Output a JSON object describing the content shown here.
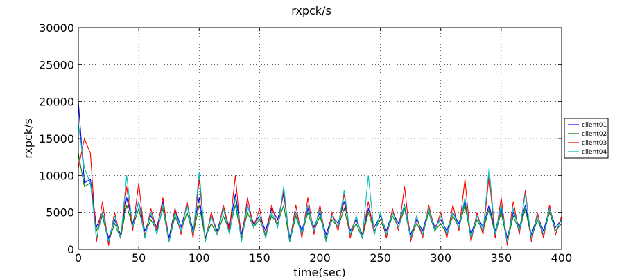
{
  "chart_data": {
    "type": "line",
    "title": "rxpck/s",
    "xlabel": "time(sec)",
    "ylabel": "rxpck/s",
    "xlim": [
      0,
      400
    ],
    "ylim": [
      0,
      30000
    ],
    "xticks": [
      "0",
      "50",
      "100",
      "150",
      "200",
      "250",
      "300",
      "350",
      "400"
    ],
    "yticks": [
      "0",
      "5000",
      "10000",
      "15000",
      "20000",
      "25000",
      "30000"
    ],
    "grid": true,
    "legend_position": "right",
    "x": [
      0,
      5,
      10,
      15,
      20,
      25,
      30,
      35,
      40,
      45,
      50,
      55,
      60,
      65,
      70,
      75,
      80,
      85,
      90,
      95,
      100,
      105,
      110,
      115,
      120,
      125,
      130,
      135,
      140,
      145,
      150,
      155,
      160,
      165,
      170,
      175,
      180,
      185,
      190,
      195,
      200,
      205,
      210,
      215,
      220,
      225,
      230,
      235,
      240,
      245,
      250,
      255,
      260,
      265,
      270,
      275,
      280,
      285,
      290,
      295,
      300,
      305,
      310,
      315,
      320,
      325,
      330,
      335,
      340,
      345,
      350,
      355,
      360,
      365,
      370,
      375,
      380,
      385,
      390,
      395,
      400
    ],
    "series": [
      {
        "name": "client01",
        "color": "#0000ff",
        "values": [
          20000,
          9000,
          9500,
          3000,
          5000,
          1500,
          4000,
          2000,
          7000,
          3500,
          6500,
          2500,
          4500,
          3000,
          6500,
          1500,
          5500,
          3000,
          6000,
          2500,
          7000,
          1500,
          4500,
          2500,
          5500,
          3000,
          7500,
          2000,
          6000,
          3500,
          4500,
          2500,
          5500,
          4000,
          7500,
          1500,
          5000,
          2500,
          5500,
          3000,
          5000,
          2000,
          4500,
          3500,
          6500,
          2500,
          4000,
          2000,
          5500,
          3000,
          4500,
          2500,
          5000,
          3500,
          6000,
          2000,
          4000,
          2500,
          5500,
          3000,
          4000,
          2500,
          5000,
          3500,
          6500,
          2000,
          4500,
          3000,
          6000,
          2500,
          5500,
          1500,
          5000,
          3000,
          6000,
          2000,
          4500,
          2500,
          5500,
          3000,
          4000
        ]
      },
      {
        "name": "client02",
        "color": "#008000",
        "values": [
          13000,
          8500,
          9000,
          2500,
          4500,
          1000,
          3500,
          1500,
          6000,
          3000,
          5500,
          2000,
          4000,
          2500,
          5500,
          1000,
          4500,
          2500,
          5000,
          2000,
          6000,
          1500,
          3500,
          2000,
          4500,
          2500,
          6000,
          1500,
          5000,
          3000,
          4000,
          2000,
          4500,
          3500,
          6000,
          1000,
          4500,
          2000,
          5000,
          2500,
          4500,
          1500,
          4000,
          3000,
          5500,
          2000,
          3500,
          1500,
          5000,
          2500,
          4000,
          2000,
          4500,
          3000,
          5500,
          1500,
          3500,
          2000,
          5000,
          2500,
          3500,
          2000,
          4500,
          3000,
          6000,
          1500,
          4000,
          2500,
          5500,
          2000,
          5000,
          1000,
          4500,
          2500,
          5500,
          1500,
          4000,
          2000,
          5000,
          2500,
          3500
        ]
      },
      {
        "name": "client03",
        "color": "#ff0000",
        "values": [
          11000,
          15000,
          13000,
          1000,
          6500,
          500,
          5000,
          1500,
          8500,
          2500,
          9000,
          1500,
          5500,
          2500,
          7000,
          1000,
          5500,
          2000,
          6500,
          1500,
          9500,
          1000,
          5000,
          2000,
          6000,
          2500,
          10000,
          1000,
          7000,
          3000,
          5500,
          1500,
          6000,
          3000,
          8000,
          1000,
          6000,
          1500,
          7000,
          2000,
          6000,
          1000,
          5000,
          2500,
          7500,
          1500,
          4500,
          1500,
          6500,
          2000,
          5000,
          1500,
          5500,
          2500,
          8500,
          1000,
          4500,
          1500,
          6000,
          2500,
          5000,
          1500,
          6000,
          2500,
          9500,
          1000,
          5000,
          2000,
          10000,
          1500,
          7000,
          500,
          6500,
          2000,
          8000,
          1000,
          5000,
          1500,
          6000,
          2000,
          4500
        ]
      },
      {
        "name": "client04",
        "color": "#00bfbf",
        "values": [
          17000,
          11000,
          9000,
          1500,
          5000,
          1000,
          4500,
          1500,
          10000,
          3000,
          6500,
          1500,
          5000,
          2000,
          6000,
          1000,
          5000,
          2500,
          6000,
          2000,
          10500,
          1000,
          4500,
          2000,
          5500,
          2000,
          7000,
          1000,
          6000,
          3000,
          4500,
          1500,
          5000,
          3000,
          8500,
          1000,
          5000,
          2000,
          6000,
          2500,
          5500,
          1000,
          4500,
          3000,
          8000,
          2000,
          4500,
          1500,
          10000,
          2000,
          5000,
          2000,
          5000,
          3000,
          6000,
          1500,
          4500,
          2000,
          5500,
          2500,
          4500,
          2000,
          5000,
          3000,
          7000,
          1500,
          4500,
          2500,
          11000,
          2000,
          6000,
          1000,
          5500,
          2500,
          7500,
          1500,
          4500,
          2000,
          5500,
          2500,
          4000
        ]
      }
    ]
  }
}
